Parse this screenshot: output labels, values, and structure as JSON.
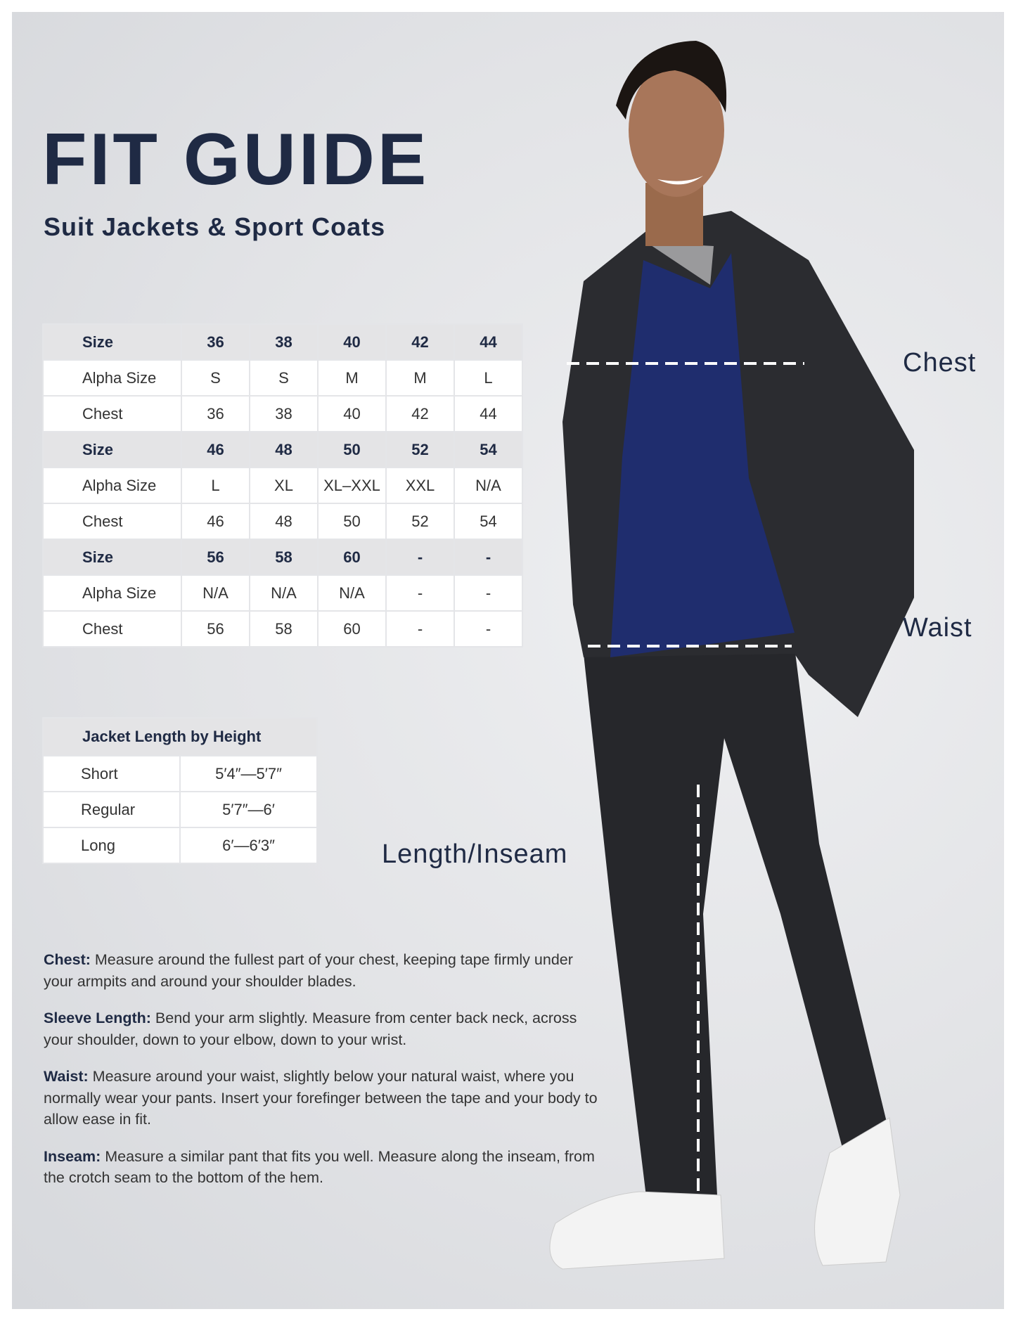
{
  "header": {
    "title": "FIT GUIDE",
    "subtitle": "Suit Jackets & Sport Coats"
  },
  "size_table": {
    "rows": [
      {
        "type": "head",
        "cells": [
          "Size",
          "36",
          "38",
          "40",
          "42",
          "44"
        ]
      },
      {
        "type": "body",
        "cells": [
          "Alpha Size",
          "S",
          "S",
          "M",
          "M",
          "L"
        ]
      },
      {
        "type": "body",
        "cells": [
          "Chest",
          "36",
          "38",
          "40",
          "42",
          "44"
        ]
      },
      {
        "type": "head",
        "cells": [
          "Size",
          "46",
          "48",
          "50",
          "52",
          "54"
        ]
      },
      {
        "type": "body",
        "cells": [
          "Alpha Size",
          "L",
          "XL",
          "XL–XXL",
          "XXL",
          "N/A"
        ]
      },
      {
        "type": "body",
        "cells": [
          "Chest",
          "46",
          "48",
          "50",
          "52",
          "54"
        ]
      },
      {
        "type": "head",
        "cells": [
          "Size",
          "56",
          "58",
          "60",
          "-",
          "-"
        ]
      },
      {
        "type": "body",
        "cells": [
          "Alpha Size",
          "N/A",
          "N/A",
          "N/A",
          "-",
          "-"
        ]
      },
      {
        "type": "body",
        "cells": [
          "Chest",
          "56",
          "58",
          "60",
          "-",
          "-"
        ]
      }
    ]
  },
  "length_table": {
    "header": "Jacket Length by Height",
    "rows": [
      [
        "Short",
        "5′4″—5′7″"
      ],
      [
        "Regular",
        "5′7″—6′"
      ],
      [
        "Long",
        "6′—6′3″"
      ]
    ]
  },
  "instructions": [
    {
      "term": "Chest:",
      "text": " Measure around the fullest part of your chest, keeping tape firmly under your armpits and around your shoulder blades."
    },
    {
      "term": "Sleeve Length:",
      "text": " Bend your arm slightly. Measure from center back neck, across your shoulder, down to your elbow, down to your wrist."
    },
    {
      "term": "Waist:",
      "text": " Measure around your waist, slightly below your natural waist, where you normally wear your pants. Insert your forefinger between the tape and your body to allow ease in fit."
    },
    {
      "term": "Inseam:",
      "text": " Measure a similar pant that fits you well. Measure along the inseam, from the crotch seam to the bottom of the hem."
    }
  ],
  "measure_labels": {
    "chest": "Chest",
    "waist": "Waist",
    "inseam": "Length/Inseam"
  },
  "colors": {
    "navy": "#1f2a44",
    "sweater": "#1f2d6e",
    "suit": "#2b2c30"
  }
}
